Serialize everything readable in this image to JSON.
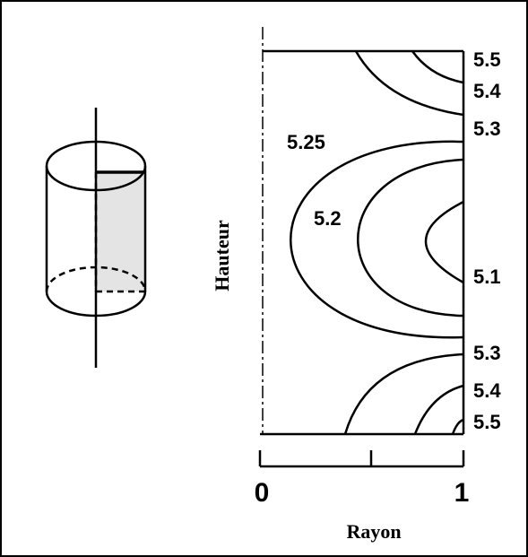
{
  "axis": {
    "x_label": "Rayon",
    "y_label": "Hauteur",
    "x_ticks": [
      "0",
      "1"
    ]
  },
  "contour_labels": [
    "5.5",
    "5.4",
    "5.3",
    "5.25",
    "5.2",
    "5.1",
    "5.3",
    "5.4",
    "5.5"
  ]
}
